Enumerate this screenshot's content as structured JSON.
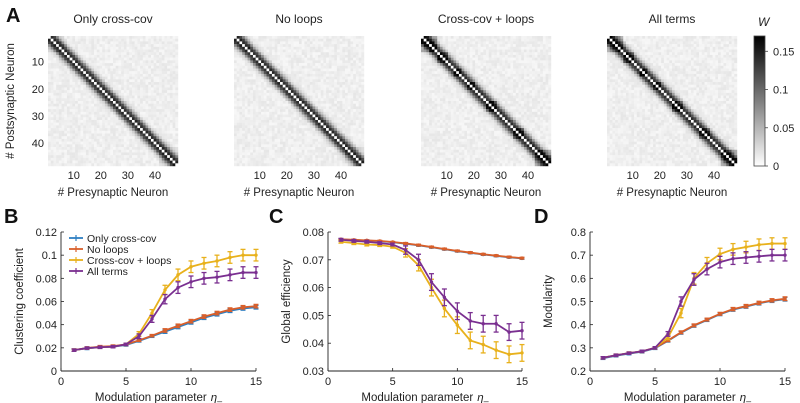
{
  "colors": {
    "only_cross_cov": "#2e7fc2",
    "no_loops": "#d95f2a",
    "cross_cov_loops": "#e8b11c",
    "all_terms": "#7a2f90"
  },
  "panel_A": {
    "letter": "A",
    "heatmaps": [
      {
        "title": "Only cross-cov",
        "block_strength": 0.15,
        "blocks": [
          [
            1,
            6
          ],
          [
            42,
            48
          ]
        ]
      },
      {
        "title": "No loops",
        "block_strength": 0.15,
        "blocks": [
          [
            1,
            6
          ],
          [
            42,
            48
          ]
        ]
      },
      {
        "title": "Cross-cov + loops",
        "block_strength": 0.8,
        "blocks": [
          [
            1,
            6
          ],
          [
            7,
            10
          ],
          [
            13,
            15
          ],
          [
            18,
            20
          ],
          [
            25,
            28
          ],
          [
            35,
            38
          ],
          [
            43,
            48
          ]
        ]
      },
      {
        "title": "All terms",
        "block_strength": 0.8,
        "blocks": [
          [
            1,
            6
          ],
          [
            7,
            10
          ],
          [
            13,
            15
          ],
          [
            18,
            20
          ],
          [
            25,
            28
          ],
          [
            35,
            38
          ],
          [
            43,
            48
          ]
        ]
      }
    ],
    "y_label": "# Postsynaptic Neuron",
    "x_label": "# Presynaptic Neuron",
    "y_ticks": [
      "10",
      "20",
      "30",
      "40"
    ],
    "x_ticks": [
      "10",
      "20",
      "30",
      "40"
    ],
    "colorbar": {
      "label": "W",
      "ticks": [
        "0",
        "0.05",
        "0.1",
        "0.15"
      ],
      "tick_values": [
        0,
        0.05,
        0.1,
        0.15
      ],
      "vmin": 0,
      "vmax": 0.17
    }
  },
  "chart_data": [
    {
      "panel": "B",
      "type": "line",
      "ylabel": "Clustering coefficient",
      "xlabel": "Modulation parameter η₋",
      "xlabel_main": "Modulation parameter",
      "xlabel_symbol": "η",
      "xlabel_sub": "–",
      "xlim": [
        0,
        15
      ],
      "ylim": [
        0,
        0.12
      ],
      "x_ticks": [
        0,
        5,
        10,
        15
      ],
      "y_ticks": [
        0,
        0.02,
        0.04,
        0.06,
        0.08,
        0.1,
        0.12
      ],
      "x_tick_labels": [
        "0",
        "5",
        "10",
        "15"
      ],
      "y_tick_labels": [
        "0",
        "0.02",
        "0.04",
        "0.06",
        "0.08",
        "0.1",
        "0.12"
      ],
      "legend": [
        "Only cross-cov",
        "No loops",
        "Cross-cov + loops",
        "All terms"
      ],
      "legend_position": "top-left",
      "x": [
        1,
        2,
        3,
        4,
        5,
        6,
        7,
        8,
        9,
        10,
        11,
        12,
        13,
        14,
        15
      ],
      "series": [
        {
          "name": "Only cross-cov",
          "color_key": "only_cross_cov",
          "values": [
            0.018,
            0.0195,
            0.0205,
            0.021,
            0.0225,
            0.026,
            0.03,
            0.034,
            0.038,
            0.042,
            0.046,
            0.049,
            0.052,
            0.054,
            0.055
          ],
          "errors": [
            0.001,
            0.001,
            0.001,
            0.001,
            0.001,
            0.001,
            0.001,
            0.0015,
            0.0015,
            0.0015,
            0.0015,
            0.0015,
            0.0015,
            0.0015,
            0.0015
          ]
        },
        {
          "name": "No loops",
          "color_key": "no_loops",
          "values": [
            0.018,
            0.0198,
            0.021,
            0.0215,
            0.023,
            0.0265,
            0.0305,
            0.035,
            0.039,
            0.043,
            0.047,
            0.05,
            0.053,
            0.055,
            0.056
          ],
          "errors": [
            0.001,
            0.001,
            0.001,
            0.001,
            0.001,
            0.001,
            0.001,
            0.0015,
            0.0015,
            0.0015,
            0.0015,
            0.0015,
            0.0015,
            0.0015,
            0.0015
          ]
        },
        {
          "name": "Cross-cov + loops",
          "color_key": "cross_cov_loops",
          "values": [
            0.018,
            0.0198,
            0.0205,
            0.021,
            0.023,
            0.032,
            0.05,
            0.07,
            0.083,
            0.09,
            0.093,
            0.095,
            0.098,
            0.1,
            0.1
          ],
          "errors": [
            0.001,
            0.001,
            0.001,
            0.001,
            0.001,
            0.002,
            0.003,
            0.004,
            0.005,
            0.005,
            0.005,
            0.005,
            0.005,
            0.005,
            0.005
          ]
        },
        {
          "name": "All terms",
          "color_key": "all_terms",
          "values": [
            0.018,
            0.0198,
            0.0205,
            0.021,
            0.023,
            0.03,
            0.045,
            0.062,
            0.072,
            0.077,
            0.08,
            0.081,
            0.083,
            0.085,
            0.085
          ],
          "errors": [
            0.001,
            0.001,
            0.001,
            0.001,
            0.001,
            0.002,
            0.003,
            0.004,
            0.005,
            0.005,
            0.005,
            0.005,
            0.005,
            0.005,
            0.005
          ]
        }
      ]
    },
    {
      "panel": "C",
      "type": "line",
      "ylabel": "Global efficiency",
      "xlabel": "Modulation parameter η₋",
      "xlabel_main": "Modulation parameter",
      "xlabel_symbol": "η",
      "xlabel_sub": "–",
      "xlim": [
        0,
        15
      ],
      "ylim": [
        0.03,
        0.08
      ],
      "x_ticks": [
        0,
        5,
        10,
        15
      ],
      "y_ticks": [
        0.03,
        0.04,
        0.05,
        0.06,
        0.07,
        0.08
      ],
      "x_tick_labels": [
        "0",
        "5",
        "10",
        "15"
      ],
      "y_tick_labels": [
        "0.03",
        "0.04",
        "0.05",
        "0.06",
        "0.07",
        "0.08"
      ],
      "x": [
        1,
        2,
        3,
        4,
        5,
        6,
        7,
        8,
        9,
        10,
        11,
        12,
        13,
        14,
        15
      ],
      "series": [
        {
          "name": "Only cross-cov",
          "color_key": "only_cross_cov",
          "values": [
            0.0773,
            0.0771,
            0.0769,
            0.0767,
            0.0763,
            0.0758,
            0.0752,
            0.0745,
            0.0738,
            0.0731,
            0.0725,
            0.0719,
            0.0714,
            0.0709,
            0.0705
          ],
          "errors": [
            0.0002,
            0.0002,
            0.0002,
            0.0002,
            0.0002,
            0.0003,
            0.0003,
            0.0003,
            0.0003,
            0.0003,
            0.0003,
            0.0003,
            0.0003,
            0.0003,
            0.0003
          ]
        },
        {
          "name": "No loops",
          "color_key": "no_loops",
          "values": [
            0.0774,
            0.0772,
            0.077,
            0.0768,
            0.0764,
            0.0759,
            0.0753,
            0.0746,
            0.0739,
            0.0732,
            0.0726,
            0.072,
            0.0715,
            0.071,
            0.0706
          ],
          "errors": [
            0.0002,
            0.0002,
            0.0002,
            0.0002,
            0.0002,
            0.0003,
            0.0003,
            0.0003,
            0.0003,
            0.0003,
            0.0003,
            0.0003,
            0.0003,
            0.0003,
            0.0003
          ]
        },
        {
          "name": "Cross-cov + loops",
          "color_key": "cross_cov_loops",
          "values": [
            0.0765,
            0.076,
            0.0755,
            0.0753,
            0.0747,
            0.0725,
            0.068,
            0.06,
            0.0525,
            0.0465,
            0.041,
            0.0395,
            0.0375,
            0.036,
            0.0365
          ],
          "errors": [
            0.0005,
            0.0005,
            0.0005,
            0.0005,
            0.0005,
            0.0015,
            0.002,
            0.003,
            0.003,
            0.003,
            0.003,
            0.003,
            0.003,
            0.003,
            0.003
          ]
        },
        {
          "name": "All terms",
          "color_key": "all_terms",
          "values": [
            0.0772,
            0.0768,
            0.0765,
            0.076,
            0.0755,
            0.0735,
            0.07,
            0.062,
            0.0565,
            0.0515,
            0.048,
            0.047,
            0.047,
            0.044,
            0.0445
          ],
          "errors": [
            0.0005,
            0.0005,
            0.0005,
            0.0005,
            0.0005,
            0.0015,
            0.002,
            0.003,
            0.003,
            0.003,
            0.003,
            0.003,
            0.003,
            0.003,
            0.003
          ]
        }
      ]
    },
    {
      "panel": "D",
      "type": "line",
      "ylabel": "Modularity",
      "xlabel": "Modulation parameter η₋",
      "xlabel_main": "Modulation parameter",
      "xlabel_symbol": "η",
      "xlabel_sub": "–",
      "xlim": [
        0,
        15
      ],
      "ylim": [
        0.2,
        0.8
      ],
      "x_ticks": [
        0,
        5,
        10,
        15
      ],
      "y_ticks": [
        0.2,
        0.3,
        0.4,
        0.5,
        0.6,
        0.7,
        0.8
      ],
      "x_tick_labels": [
        "0",
        "5",
        "10",
        "15"
      ],
      "y_tick_labels": [
        "0.2",
        "0.3",
        "0.4",
        "0.5",
        "0.6",
        "0.7",
        "0.8"
      ],
      "x": [
        1,
        2,
        3,
        4,
        5,
        6,
        7,
        8,
        9,
        10,
        11,
        12,
        13,
        14,
        15
      ],
      "series": [
        {
          "name": "Only cross-cov",
          "color_key": "only_cross_cov",
          "values": [
            0.255,
            0.266,
            0.275,
            0.283,
            0.298,
            0.33,
            0.365,
            0.395,
            0.42,
            0.445,
            0.465,
            0.478,
            0.492,
            0.503,
            0.51
          ],
          "errors": [
            0.005,
            0.005,
            0.005,
            0.005,
            0.005,
            0.005,
            0.006,
            0.006,
            0.006,
            0.006,
            0.007,
            0.007,
            0.007,
            0.007,
            0.008
          ]
        },
        {
          "name": "No loops",
          "color_key": "no_loops",
          "values": [
            0.257,
            0.268,
            0.277,
            0.285,
            0.3,
            0.332,
            0.367,
            0.397,
            0.422,
            0.447,
            0.467,
            0.48,
            0.494,
            0.505,
            0.512
          ],
          "errors": [
            0.005,
            0.005,
            0.005,
            0.005,
            0.005,
            0.005,
            0.006,
            0.006,
            0.006,
            0.006,
            0.007,
            0.007,
            0.007,
            0.007,
            0.008
          ]
        },
        {
          "name": "Cross-cov + loops",
          "color_key": "cross_cov_loops",
          "values": [
            0.257,
            0.268,
            0.277,
            0.285,
            0.3,
            0.345,
            0.45,
            0.6,
            0.665,
            0.705,
            0.725,
            0.735,
            0.745,
            0.75,
            0.75
          ],
          "errors": [
            0.005,
            0.005,
            0.005,
            0.005,
            0.005,
            0.01,
            0.02,
            0.025,
            0.025,
            0.025,
            0.025,
            0.025,
            0.025,
            0.025,
            0.025
          ]
        },
        {
          "name": "All terms",
          "color_key": "all_terms",
          "values": [
            0.257,
            0.268,
            0.277,
            0.285,
            0.3,
            0.36,
            0.5,
            0.595,
            0.64,
            0.67,
            0.685,
            0.69,
            0.695,
            0.7,
            0.7
          ],
          "errors": [
            0.005,
            0.005,
            0.005,
            0.005,
            0.005,
            0.01,
            0.02,
            0.025,
            0.025,
            0.025,
            0.025,
            0.025,
            0.025,
            0.025,
            0.025
          ]
        }
      ]
    }
  ]
}
